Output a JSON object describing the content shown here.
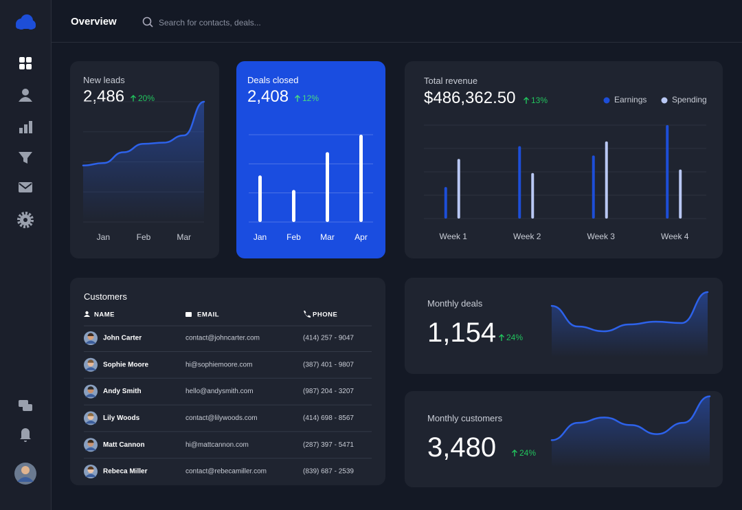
{
  "header": {
    "title": "Overview",
    "search_placeholder": "Search for contacts, deals..."
  },
  "chart_data": [
    {
      "type": "line",
      "title": "New leads",
      "total": "2,486",
      "change": "20%",
      "categories": [
        null,
        "Jan",
        null,
        "Feb",
        null,
        "Mar",
        null
      ],
      "values": [
        47,
        49,
        58,
        65,
        66,
        72,
        100
      ],
      "color": "#2d62ea",
      "ylim": [
        0,
        100
      ],
      "yticks": [
        0,
        25,
        50,
        75,
        100
      ],
      "grid": true
    },
    {
      "type": "bar",
      "title": "Deals closed",
      "total": "2,408",
      "change": "12%",
      "categories": [
        "Jan",
        "Feb",
        "Mar",
        "Apr"
      ],
      "values": [
        1.6,
        1.1,
        2.4,
        3.0
      ],
      "color": "#ffffff",
      "ylim": [
        0,
        3
      ],
      "yticks": [
        0,
        1,
        2,
        3
      ],
      "grid": true
    },
    {
      "type": "grouped-bar",
      "title": "Total revenue",
      "total": "$486,362.50",
      "change": "13%",
      "categories": [
        "Week 1",
        "Week 2",
        "Week 3",
        "Week 4"
      ],
      "series": [
        {
          "name": "Earnings",
          "color": "#1d4ed8",
          "values": [
            1.35,
            3.1,
            2.7,
            4.0
          ]
        },
        {
          "name": "Spending",
          "color": "#b9c8f4",
          "values": [
            2.55,
            1.95,
            3.3,
            2.1
          ]
        }
      ],
      "ylim": [
        0,
        4
      ],
      "yticks": [
        0,
        1,
        2,
        3,
        4
      ],
      "grid": true,
      "legend": "top-right"
    },
    {
      "type": "area",
      "title": "Monthly deals",
      "total": "1,154",
      "change": "24%",
      "values": [
        75,
        45,
        38,
        48,
        52,
        50,
        95
      ],
      "color": "#2d62ea",
      "ylim": [
        0,
        100
      ]
    },
    {
      "type": "area",
      "title": "Monthly customers",
      "total": "3,480",
      "change": "24%",
      "values": [
        36,
        59,
        66,
        56,
        44,
        59,
        94
      ],
      "color": "#2d62ea",
      "ylim": [
        0,
        100
      ]
    }
  ],
  "customers": {
    "title": "Customers",
    "columns": [
      "NAME",
      "EMAIL",
      "PHONE"
    ],
    "rows": [
      [
        "John Carter",
        "contact@johncarter.com",
        "(414) 257 - 9047"
      ],
      [
        "Sophie Moore",
        "hi@sophiemoore.com",
        "(387) 401 - 9807"
      ],
      [
        "Andy Smith",
        "hello@andysmith.com",
        "(987) 204 - 3207"
      ],
      [
        "Lily Woods",
        "contact@lilywoods.com",
        "(414) 698 - 8567"
      ],
      [
        "Matt Cannon",
        "hi@mattcannon.com",
        "(287) 397 - 5471"
      ],
      [
        "Rebeca Miller",
        "contact@rebecamiller.com",
        "(839) 687 - 2539"
      ]
    ]
  }
}
